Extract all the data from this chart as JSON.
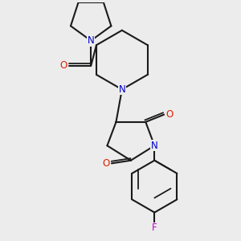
{
  "bg_color": "#ececec",
  "bond_color": "#1a1a1a",
  "N_color": "#0000cc",
  "O_color": "#dd2200",
  "F_color": "#cc00cc",
  "bond_width": 1.5,
  "figsize": [
    3.0,
    3.0
  ],
  "dpi": 100,
  "xlim": [
    -2.5,
    3.5
  ],
  "ylim": [
    -4.5,
    3.5
  ]
}
